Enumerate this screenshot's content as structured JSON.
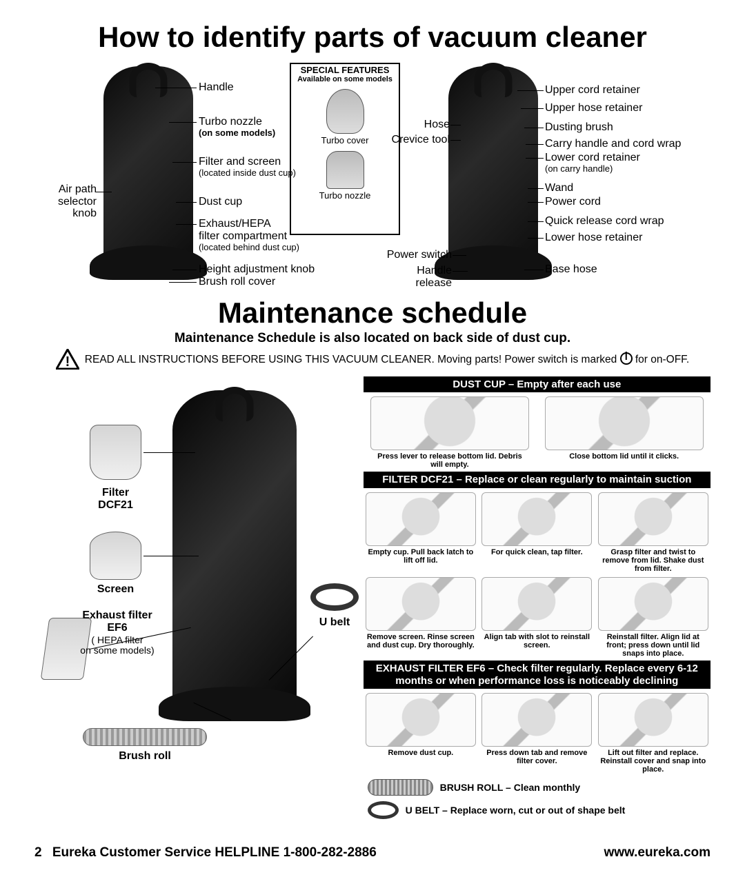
{
  "titles": {
    "identify": "How to identify parts of vacuum cleaner",
    "maintenance": "Maintenance schedule"
  },
  "front_labels": {
    "air_path": "Air path\nselector knob",
    "handle": "Handle",
    "turbo_nozzle": "Turbo nozzle",
    "turbo_note": "(on some models)",
    "filter_screen": "Filter and screen",
    "filter_screen_sub": "(located inside dust cup)",
    "dust_cup": "Dust cup",
    "exhaust": "Exhaust/HEPA\nfilter compartment",
    "exhaust_sub": "(located behind dust cup)",
    "height_knob": "Height adjustment knob",
    "brush_cover": "Brush roll cover"
  },
  "special_features": {
    "heading": "SPECIAL FEATURES",
    "sub": "Available on some models",
    "turbo_cover": "Turbo cover",
    "turbo_nozzle": "Turbo nozzle"
  },
  "back_labels_left": {
    "hose": "Hose",
    "crevice": "Crevice tool",
    "power_switch": "Power switch",
    "handle_release": "Handle\nrelease"
  },
  "back_labels_right": {
    "upper_cord": "Upper cord retainer",
    "upper_hose": "Upper hose retainer",
    "dusting_brush": "Dusting brush",
    "carry_handle": "Carry handle and cord wrap",
    "lower_cord": "Lower cord retainer",
    "lower_cord_sub": "(on carry handle)",
    "wand": "Wand",
    "power_cord": "Power cord",
    "quick_release": "Quick release cord wrap",
    "lower_hose": "Lower hose retainer",
    "base_hose": "Base hose"
  },
  "maint_header": {
    "sub": "Maintenance Schedule is also located on back side of dust cup.",
    "warn_pre": "READ ALL INSTRUCTIONS BEFORE USING THIS VACUUM CLEANER. Moving parts! Power switch is marked ",
    "warn_post": " for on-OFF."
  },
  "left_parts": {
    "filter": "Filter\nDCF21",
    "screen": "Screen",
    "exhaust": "Exhaust filter\nEF6",
    "exhaust_sub": "( HEPA filter\non some models)",
    "ubelt": "U belt",
    "brush_roll": "Brush roll"
  },
  "panels": {
    "dustcup": {
      "header": "DUST CUP – Empty after each use",
      "steps": [
        "Press lever to release bottom lid. Debris will empty.",
        "Close bottom lid until it clicks."
      ]
    },
    "dcf21": {
      "header": "FILTER DCF21 – Replace or clean regularly to maintain suction",
      "steps": [
        "Empty cup. Pull back latch to lift off lid.",
        "For quick clean, tap filter.",
        "Grasp filter and twist to remove from lid. Shake dust from filter.",
        "Remove screen. Rinse screen and dust cup. Dry thoroughly.",
        "Align tab with slot to reinstall screen.",
        "Reinstall filter. Align lid at front; press down until lid snaps into place."
      ]
    },
    "ef6": {
      "header": "EXHAUST FILTER EF6 – Check filter regularly. Replace every 6-12 months or when performance loss is noticeably declining",
      "steps": [
        "Remove dust cup.",
        "Press down tab and remove filter cover.",
        "Lift out filter and replace. Reinstall cover and snap into place."
      ]
    },
    "brush": "BRUSH ROLL – Clean monthly",
    "ubelt": "U BELT – Replace worn, cut or out of shape belt"
  },
  "footer": {
    "page": "2",
    "helpline": "Eureka Customer Service HELPLINE 1-800-282-2886",
    "url": "www.eureka.com"
  },
  "colors": {
    "bg": "#ffffff",
    "text": "#000000",
    "panel_header_bg": "#000000",
    "panel_header_fg": "#ffffff"
  }
}
